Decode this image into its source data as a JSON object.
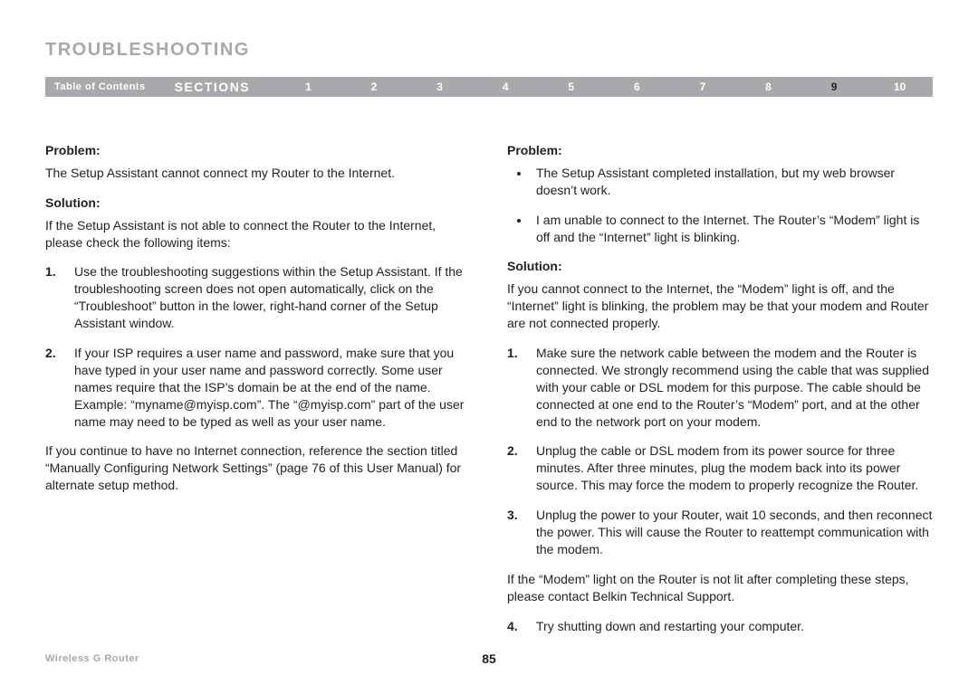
{
  "colors": {
    "grey": "#a7a9ac",
    "text": "#231f20",
    "white": "#ffffff"
  },
  "page_title": "TROUBLESHOOTING",
  "nav": {
    "toc_label": "Table of Contents",
    "sections_label": "SECTIONS",
    "numbers": [
      "1",
      "2",
      "3",
      "4",
      "5",
      "6",
      "7",
      "8",
      "9",
      "10"
    ],
    "current": "9"
  },
  "left": {
    "problem_label": "Problem:",
    "problem_text": "The Setup Assistant cannot connect my Router to the Internet.",
    "solution_label": "Solution:",
    "solution_intro": "If the Setup Assistant is not able to connect the Router to the Internet, please check the following items:",
    "steps": [
      "Use the troubleshooting suggestions within the Setup Assistant. If the troubleshooting screen does not open automatically, click on the “Troubleshoot” button in the lower, right-hand corner of the Setup Assistant window.",
      "If your ISP requires a user name and password, make sure that you have typed in your user name and password correctly. Some user names require that the ISP’s domain be at the end of the name. Example: “myname@myisp.com”. The “@myisp.com” part of the user name may need to be typed as well as your user name."
    ],
    "closing": "If you continue to have no Internet connection, reference the section titled “Manually Configuring Network Settings” (page 76 of this User Manual) for alternate setup method."
  },
  "right": {
    "problem_label": "Problem:",
    "problem_bullets": [
      "The Setup Assistant completed installation, but my web browser doesn’t work.",
      "I am unable to connect to the Internet. The Router’s “Modem” light is off and the “Internet” light is blinking."
    ],
    "solution_label": "Solution:",
    "solution_intro": "If you cannot connect to the Internet, the “Modem” light is off, and the “Internet” light is blinking, the problem may be that your modem and Router are not connected properly.",
    "steps": [
      "Make sure the network cable between the modem and the Router is connected. We strongly recommend using the cable that was supplied with your cable or DSL modem for this purpose. The cable should be connected at one end to the Router’s “Modem” port, and at the other end to the network port on your modem.",
      "Unplug the cable or DSL modem from its power source for three minutes. After three minutes, plug the modem back into its power source. This may force the modem to properly recognize the Router.",
      "Unplug the power to your Router, wait 10 seconds, and then reconnect the power. This will cause the Router to reattempt communication with the modem."
    ],
    "mid_para": "If the “Modem” light on the Router is not lit after completing these steps, please contact Belkin Technical Support.",
    "step4": "Try shutting down and restarting your computer."
  },
  "footer": {
    "product": "Wireless G Router",
    "page_number": "85"
  }
}
